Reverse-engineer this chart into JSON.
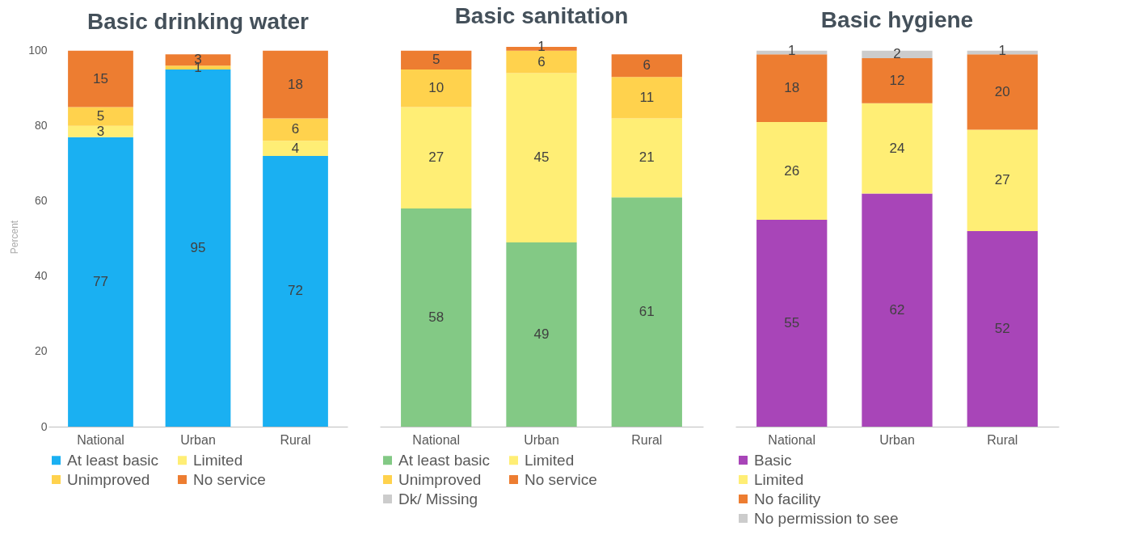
{
  "chart_data": [
    {
      "type": "bar",
      "title": "Basic drinking water",
      "ylabel": "Percent",
      "stacked": true,
      "data_labels": true,
      "legend": "bottom",
      "categories": [
        "National",
        "Urban",
        "Rural"
      ],
      "ylim": [
        0,
        101
      ],
      "yticks": [
        0,
        20,
        40,
        60,
        80,
        100
      ],
      "series": [
        {
          "name": "At least basic",
          "color": "#1ab0f2",
          "values": [
            77,
            95,
            72
          ]
        },
        {
          "name": "Limited",
          "color": "#ffee75",
          "values": [
            3,
            null,
            4
          ]
        },
        {
          "name": "Unimproved",
          "color": "#ffd24d",
          "values": [
            5,
            1,
            6
          ]
        },
        {
          "name": "No service",
          "color": "#ed7d31",
          "values": [
            15,
            3,
            18
          ]
        }
      ]
    },
    {
      "type": "bar",
      "title": "Basic sanitation",
      "stacked": true,
      "data_labels": true,
      "legend": "bottom",
      "tick_labels": "x",
      "categories": [
        "National",
        "Urban",
        "Rural"
      ],
      "ylim": [
        0,
        101
      ],
      "yticks": [
        0,
        20,
        40,
        60,
        80,
        100
      ],
      "series": [
        {
          "name": "At least basic",
          "color": "#83c985",
          "values": [
            58,
            49,
            61
          ]
        },
        {
          "name": "Limited",
          "color": "#ffee75",
          "values": [
            27,
            45,
            21
          ]
        },
        {
          "name": "Unimproved",
          "color": "#ffd24d",
          "values": [
            10,
            6,
            11
          ]
        },
        {
          "name": "No service",
          "color": "#ed7d31",
          "values": [
            5,
            1,
            6
          ]
        },
        {
          "name": "Dk/ Missing",
          "color": "#cccccc",
          "values": [
            null,
            null,
            null
          ]
        }
      ]
    },
    {
      "type": "bar",
      "title": "Basic hygiene",
      "stacked": true,
      "data_labels": true,
      "legend": "bottom",
      "tick_labels": "x",
      "categories": [
        "National",
        "Urban",
        "Rural"
      ],
      "ylim": [
        0,
        101
      ],
      "yticks": [
        0,
        20,
        40,
        60,
        80,
        100
      ],
      "series": [
        {
          "name": "Basic",
          "color": "#a845b8",
          "values": [
            55,
            62,
            52
          ]
        },
        {
          "name": "Limited",
          "color": "#ffee75",
          "values": [
            26,
            24,
            27
          ]
        },
        {
          "name": "No facility",
          "color": "#ed7d31",
          "values": [
            18,
            12,
            20
          ]
        },
        {
          "name": "No permission to see",
          "color": "#cccccc",
          "values": [
            1,
            2,
            1
          ]
        }
      ]
    }
  ]
}
